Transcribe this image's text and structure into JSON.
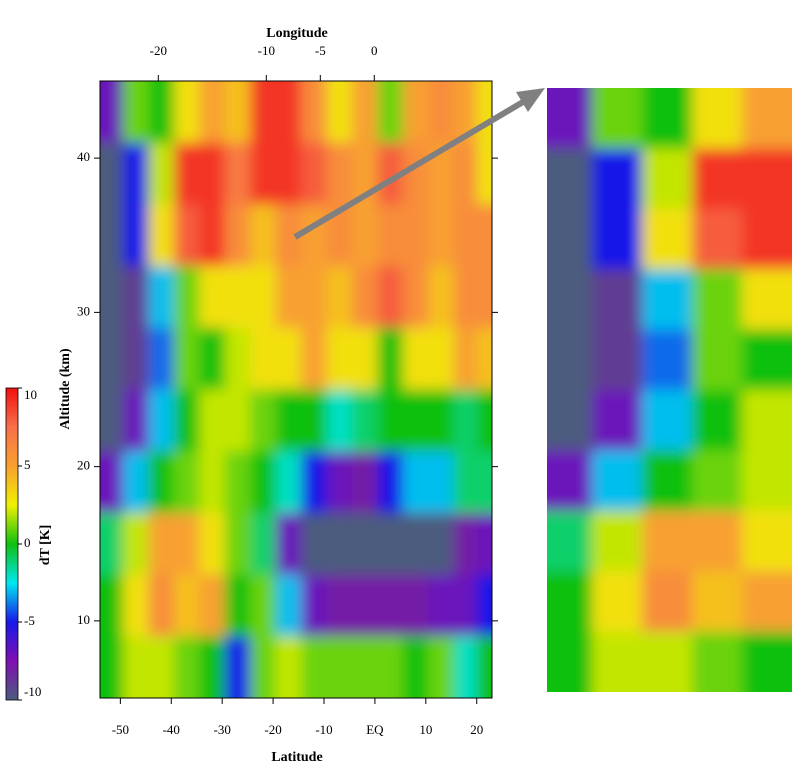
{
  "chart_data": {
    "type": "heatmap",
    "x_label": "Latitude",
    "x2_label": "Longitude",
    "y_label": "Altitude (km)",
    "colorbar_label": "dT [K]",
    "x": [
      -52,
      -47,
      -42,
      -37,
      -32,
      -27,
      -22,
      -17,
      -12,
      -7,
      -2,
      3,
      8,
      13,
      18,
      22
    ],
    "y": [
      43,
      39,
      35,
      31,
      27,
      23,
      19,
      15,
      11,
      7
    ],
    "z": [
      [
        -7,
        1,
        0,
        3,
        5,
        4,
        9,
        9,
        6,
        3,
        5,
        1,
        5,
        6,
        5,
        3
      ],
      [
        -10,
        -5,
        2,
        9,
        9,
        7,
        9,
        9,
        8,
        6,
        5,
        8,
        6,
        5,
        6,
        3
      ],
      [
        -10,
        -5,
        3,
        8,
        9,
        6,
        4,
        6,
        5,
        6,
        5,
        6,
        6,
        5,
        6,
        6
      ],
      [
        -10,
        -9,
        -3,
        1,
        3,
        3,
        3,
        5,
        5,
        4,
        6,
        8,
        6,
        4,
        6,
        6
      ],
      [
        -10,
        -9,
        -4,
        1,
        0,
        2,
        3,
        3,
        5,
        3,
        3,
        0,
        3,
        3,
        5,
        4
      ],
      [
        -10,
        -7,
        -3,
        0,
        2,
        2,
        1,
        0,
        0,
        -2,
        -1,
        0,
        0,
        0,
        -1,
        0
      ],
      [
        -7,
        -3,
        0,
        1,
        2,
        1,
        0,
        -2,
        -5,
        -7,
        -8,
        -5,
        -3,
        -3,
        -1,
        -1
      ],
      [
        -1,
        2,
        5,
        5,
        3,
        1,
        -1,
        -7,
        -10,
        -10,
        -10,
        -10,
        -10,
        -10,
        -8,
        -7
      ],
      [
        0,
        3,
        6,
        4,
        5,
        0,
        1,
        -3,
        -7,
        -8,
        -8,
        -8,
        -8,
        -7,
        -7,
        -5
      ],
      [
        0,
        2,
        2,
        1,
        0,
        -5,
        1,
        2,
        1,
        1,
        1,
        1,
        0,
        1,
        -2,
        0
      ]
    ],
    "xlim": [
      -54,
      23
    ],
    "xticks": [
      -50,
      -40,
      -30,
      -20,
      -10,
      {
        "value": 0,
        "label": "EQ"
      },
      10,
      20
    ],
    "x2lim": [
      -25.4,
      10.9
    ],
    "x2ticks": [
      -20,
      -10,
      -5,
      0
    ],
    "ylim": [
      5,
      45
    ],
    "yticks": [
      10,
      20,
      30,
      40
    ],
    "zlim": [
      -10,
      10
    ],
    "zticks": [
      -10,
      -5,
      0,
      5,
      10
    ],
    "colorscale": [
      "#4b5c7e",
      "#8010b0",
      "#1818e8",
      "#00e8f0",
      "#10c010",
      "#f0f000",
      "#f8a030",
      "#f87048",
      "#f01010"
    ]
  }
}
